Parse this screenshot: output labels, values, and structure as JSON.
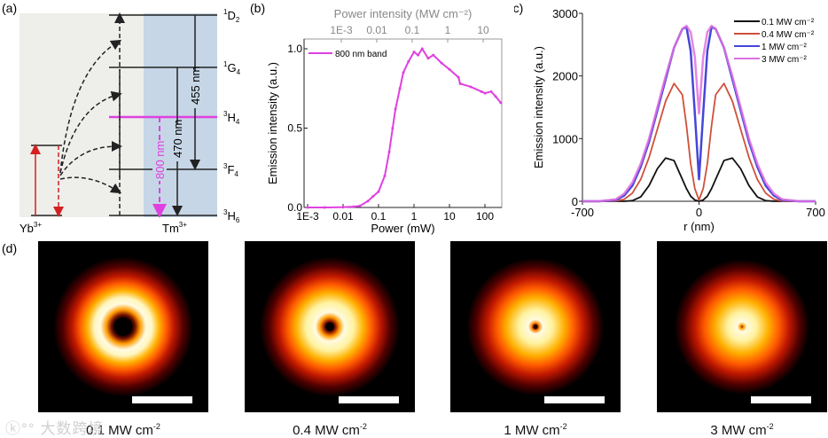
{
  "panel_labels": {
    "a": "(a)",
    "b": "(b)",
    "c": "(c)",
    "d": "(d)"
  },
  "energy_diagram": {
    "levels": [
      {
        "sup": "1",
        "main": "D",
        "sub": "2"
      },
      {
        "sup": "1",
        "main": "G",
        "sub": "4"
      },
      {
        "sup": "3",
        "main": "H",
        "sub": "4"
      },
      {
        "sup": "3",
        "main": "F",
        "sub": "4"
      },
      {
        "sup": "3",
        "main": "H",
        "sub": "6"
      }
    ],
    "transitions": [
      "455 nm",
      "470 nm",
      "800 nm"
    ],
    "ions": [
      {
        "main": "Yb",
        "sup": "3+"
      },
      {
        "main": "Tm",
        "sup": "3+"
      }
    ],
    "colors": {
      "yb": "#d42020",
      "magenta": "#e040e0",
      "blue_bg": "#c6d6e6",
      "gray_bg": "#eeeeea"
    }
  },
  "chart_data": [
    {
      "type": "line",
      "title": "",
      "xlabel": "Power (mW)",
      "x2label": "Power intensity (MW cm⁻²)",
      "ylabel": "Emission intensity (a.u.)",
      "xscale": "log",
      "xlim": [
        0.001,
        300
      ],
      "ylim": [
        0,
        1.05
      ],
      "xticks": [
        "1E-3",
        "0.01",
        "0.1",
        "1",
        "10",
        "100"
      ],
      "xtick_values": [
        0.001,
        0.01,
        0.1,
        1,
        10,
        100
      ],
      "x2ticks": [
        "1E-3",
        "0.01",
        "0.1",
        "1",
        "10"
      ],
      "x2tick_values": [
        0.001,
        0.01,
        0.1,
        1,
        10
      ],
      "yticks": [
        "0.0",
        "0.5",
        "1.0"
      ],
      "ytick_values": [
        0,
        0.5,
        1.0
      ],
      "legend": "top-left",
      "series": [
        {
          "name": "800 nm band",
          "color": "#e040e0",
          "x": [
            0.001,
            0.003,
            0.01,
            0.02,
            0.03,
            0.05,
            0.07,
            0.1,
            0.15,
            0.2,
            0.25,
            0.3,
            0.4,
            0.5,
            0.7,
            1,
            1.3,
            1.7,
            2.5,
            3.5,
            6,
            10,
            18,
            20,
            40,
            80,
            100,
            150,
            200,
            280
          ],
          "y": [
            0,
            0,
            0.002,
            0.005,
            0.01,
            0.04,
            0.07,
            0.1,
            0.2,
            0.35,
            0.5,
            0.62,
            0.75,
            0.85,
            0.92,
            0.98,
            0.96,
            1.0,
            0.94,
            0.96,
            0.91,
            0.87,
            0.82,
            0.78,
            0.76,
            0.73,
            0.72,
            0.73,
            0.7,
            0.66
          ]
        }
      ]
    },
    {
      "type": "line",
      "title": "",
      "xlabel": "r (nm)",
      "ylabel": "Emission intensity (a.u.)",
      "xlim": [
        -700,
        700
      ],
      "ylim": [
        0,
        3000
      ],
      "xticks": [
        "-700",
        "0",
        "700"
      ],
      "xtick_values": [
        -700,
        0,
        700
      ],
      "yticks": [
        "0",
        "1000",
        "2000",
        "3000"
      ],
      "ytick_values": [
        0,
        1000,
        2000,
        3000
      ],
      "legend": "top-right",
      "x": [
        -700,
        -600,
        -500,
        -450,
        -400,
        -350,
        -300,
        -250,
        -200,
        -150,
        -100,
        -75,
        -50,
        -25,
        0,
        25,
        50,
        75,
        100,
        150,
        200,
        250,
        300,
        350,
        400,
        450,
        500,
        600,
        700
      ],
      "series": [
        {
          "name": "0.1 MW cm⁻²",
          "color": "#111111",
          "values": [
            0,
            0,
            0,
            0,
            10,
            70,
            250,
            520,
            690,
            650,
            350,
            200,
            80,
            20,
            0,
            20,
            80,
            200,
            350,
            650,
            690,
            520,
            250,
            70,
            10,
            0,
            0,
            0,
            0
          ]
        },
        {
          "name": "0.4 MW cm⁻²",
          "color": "#d0503a",
          "values": [
            0,
            0,
            5,
            30,
            130,
            350,
            700,
            1150,
            1600,
            1880,
            1700,
            1200,
            600,
            200,
            20,
            200,
            600,
            1200,
            1700,
            1880,
            1600,
            1150,
            700,
            350,
            130,
            30,
            5,
            0,
            0
          ]
        },
        {
          "name": "1    MW cm⁻²",
          "color": "#4646d8",
          "values": [
            0,
            0,
            20,
            90,
            250,
            550,
            950,
            1450,
            1950,
            2450,
            2750,
            2780,
            2400,
            1400,
            350,
            1400,
            2400,
            2780,
            2750,
            2450,
            1950,
            1450,
            950,
            550,
            250,
            90,
            20,
            0,
            0
          ]
        },
        {
          "name": "3    MW cm⁻²",
          "color": "#e070e0",
          "values": [
            0,
            0,
            30,
            120,
            300,
            600,
            1000,
            1500,
            2000,
            2450,
            2750,
            2800,
            2700,
            2300,
            1400,
            2300,
            2700,
            2800,
            2750,
            2450,
            2000,
            1500,
            1000,
            600,
            300,
            120,
            30,
            0,
            0
          ]
        }
      ]
    }
  ],
  "images": [
    {
      "label": "0.1 MW  cm",
      "sup": "-2"
    },
    {
      "label": "0.4 MW cm",
      "sup": "-2"
    },
    {
      "label": "1 MW cm",
      "sup": "-2"
    },
    {
      "label": "3 MW cm",
      "sup": "-2"
    }
  ],
  "watermark": "大数跨境"
}
